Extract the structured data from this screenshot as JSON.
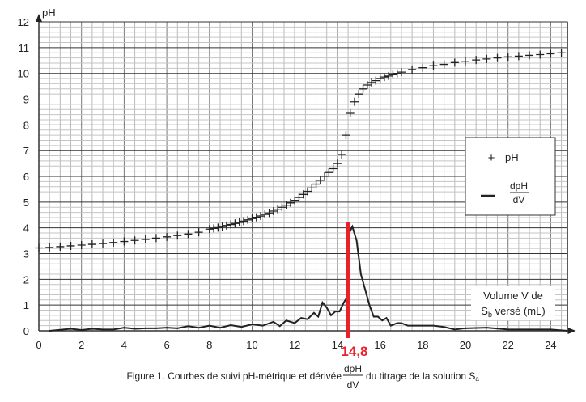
{
  "chart_data": {
    "type": "scatter+line",
    "title": "Figure 1. Courbes de suivi pH-métrique et dérivée dpH/dV du titrage de la solution Sa",
    "caption": {
      "prefix": "Figure 1. Courbes de suivi pH-métrique et dérivée",
      "frac_num": "dpH",
      "frac_den": "dV",
      "suffix": "du titrage de la solution S",
      "suffix_sub": "a"
    },
    "ylabel": "pH",
    "xlabel": {
      "line1": "Volume V de",
      "line2_pre": "S",
      "line2_sub": "b",
      "line2_post": " versé (mL)"
    },
    "xlim": [
      0,
      24.8
    ],
    "ylim": [
      0,
      12
    ],
    "xticks": [
      "0",
      "2",
      "4",
      "6",
      "8",
      "10",
      "12",
      "14",
      "16",
      "18",
      "20",
      "22",
      "24"
    ],
    "yticks": [
      "0",
      "1",
      "2",
      "3",
      "4",
      "5",
      "6",
      "7",
      "8",
      "9",
      "10",
      "11",
      "12"
    ],
    "grid": true,
    "legend": {
      "position": "right",
      "ph": "pH",
      "deriv_num": "dpH",
      "deriv_den": "dV"
    },
    "annotation": {
      "label": "14,8",
      "x": 14.8,
      "color": "#e8202a"
    },
    "series": [
      {
        "name": "pH",
        "marker": "+",
        "x": [
          0,
          0.5,
          1,
          1.5,
          2,
          2.5,
          3,
          3.5,
          4,
          4.5,
          5,
          5.5,
          6,
          6.5,
          7,
          7.5,
          8,
          8.2,
          8.4,
          8.6,
          8.8,
          9,
          9.2,
          9.4,
          9.6,
          9.8,
          10,
          10.2,
          10.4,
          10.6,
          10.8,
          11,
          11.2,
          11.4,
          11.6,
          11.8,
          12,
          12.2,
          12.4,
          12.6,
          12.8,
          13,
          13.2,
          13.4,
          13.6,
          13.8,
          14,
          14.2,
          14.4,
          14.6,
          14.8,
          15,
          15.2,
          15.4,
          15.6,
          15.8,
          16,
          16.2,
          16.4,
          16.6,
          16.8,
          17,
          17.5,
          18,
          18.5,
          19,
          19.5,
          20,
          20.5,
          21,
          21.5,
          22,
          22.5,
          23,
          23.5,
          24,
          24.5
        ],
        "y": [
          3.22,
          3.24,
          3.27,
          3.3,
          3.33,
          3.36,
          3.39,
          3.43,
          3.47,
          3.51,
          3.55,
          3.6,
          3.65,
          3.7,
          3.76,
          3.83,
          3.95,
          3.98,
          4.01,
          4.05,
          4.09,
          4.13,
          4.17,
          4.21,
          4.26,
          4.31,
          4.36,
          4.41,
          4.46,
          4.52,
          4.58,
          4.65,
          4.72,
          4.8,
          4.88,
          4.97,
          5.07,
          5.18,
          5.3,
          5.42,
          5.55,
          5.7,
          5.85,
          6.0,
          6.15,
          6.3,
          6.5,
          6.85,
          7.6,
          8.45,
          8.9,
          9.2,
          9.4,
          9.55,
          9.65,
          9.72,
          9.8,
          9.86,
          9.9,
          9.95,
          10.0,
          10.05,
          10.15,
          10.22,
          10.3,
          10.35,
          10.42,
          10.47,
          10.52,
          10.56,
          10.6,
          10.64,
          10.67,
          10.7,
          10.73,
          10.76,
          10.8
        ]
      },
      {
        "name": "dpH/dV",
        "line": true,
        "x": [
          0.5,
          1.5,
          2,
          2.5,
          3,
          3.5,
          4,
          4.5,
          5,
          5.5,
          6,
          6.5,
          7,
          7.5,
          8,
          8.5,
          9,
          9.5,
          10,
          10.5,
          11,
          11.3,
          11.6,
          12,
          12.3,
          12.6,
          12.9,
          13.1,
          13.3,
          13.5,
          13.7,
          13.9,
          14.1,
          14.3,
          14.45,
          14.55,
          14.7,
          14.9,
          15.1,
          15.5,
          15.7,
          15.9,
          16.1,
          16.3,
          16.5,
          16.8,
          17,
          17.3,
          18,
          18.5,
          19,
          19.5,
          20,
          21,
          22,
          23,
          24,
          24.8
        ],
        "y": [
          0,
          0.08,
          0.03,
          0.08,
          0.05,
          0.05,
          0.12,
          0.08,
          0.1,
          0.1,
          0.12,
          0.1,
          0.18,
          0.12,
          0.2,
          0.12,
          0.22,
          0.15,
          0.25,
          0.2,
          0.35,
          0.18,
          0.4,
          0.3,
          0.5,
          0.45,
          0.7,
          0.55,
          1.1,
          0.9,
          0.6,
          0.75,
          0.75,
          1.1,
          1.3,
          3.8,
          4.05,
          3.5,
          2.2,
          1.0,
          0.55,
          0.55,
          0.4,
          0.5,
          0.2,
          0.3,
          0.3,
          0.2,
          0.2,
          0.2,
          0.15,
          0.05,
          0.1,
          0.12,
          0.05,
          0.05,
          0.05,
          0
        ]
      }
    ]
  }
}
